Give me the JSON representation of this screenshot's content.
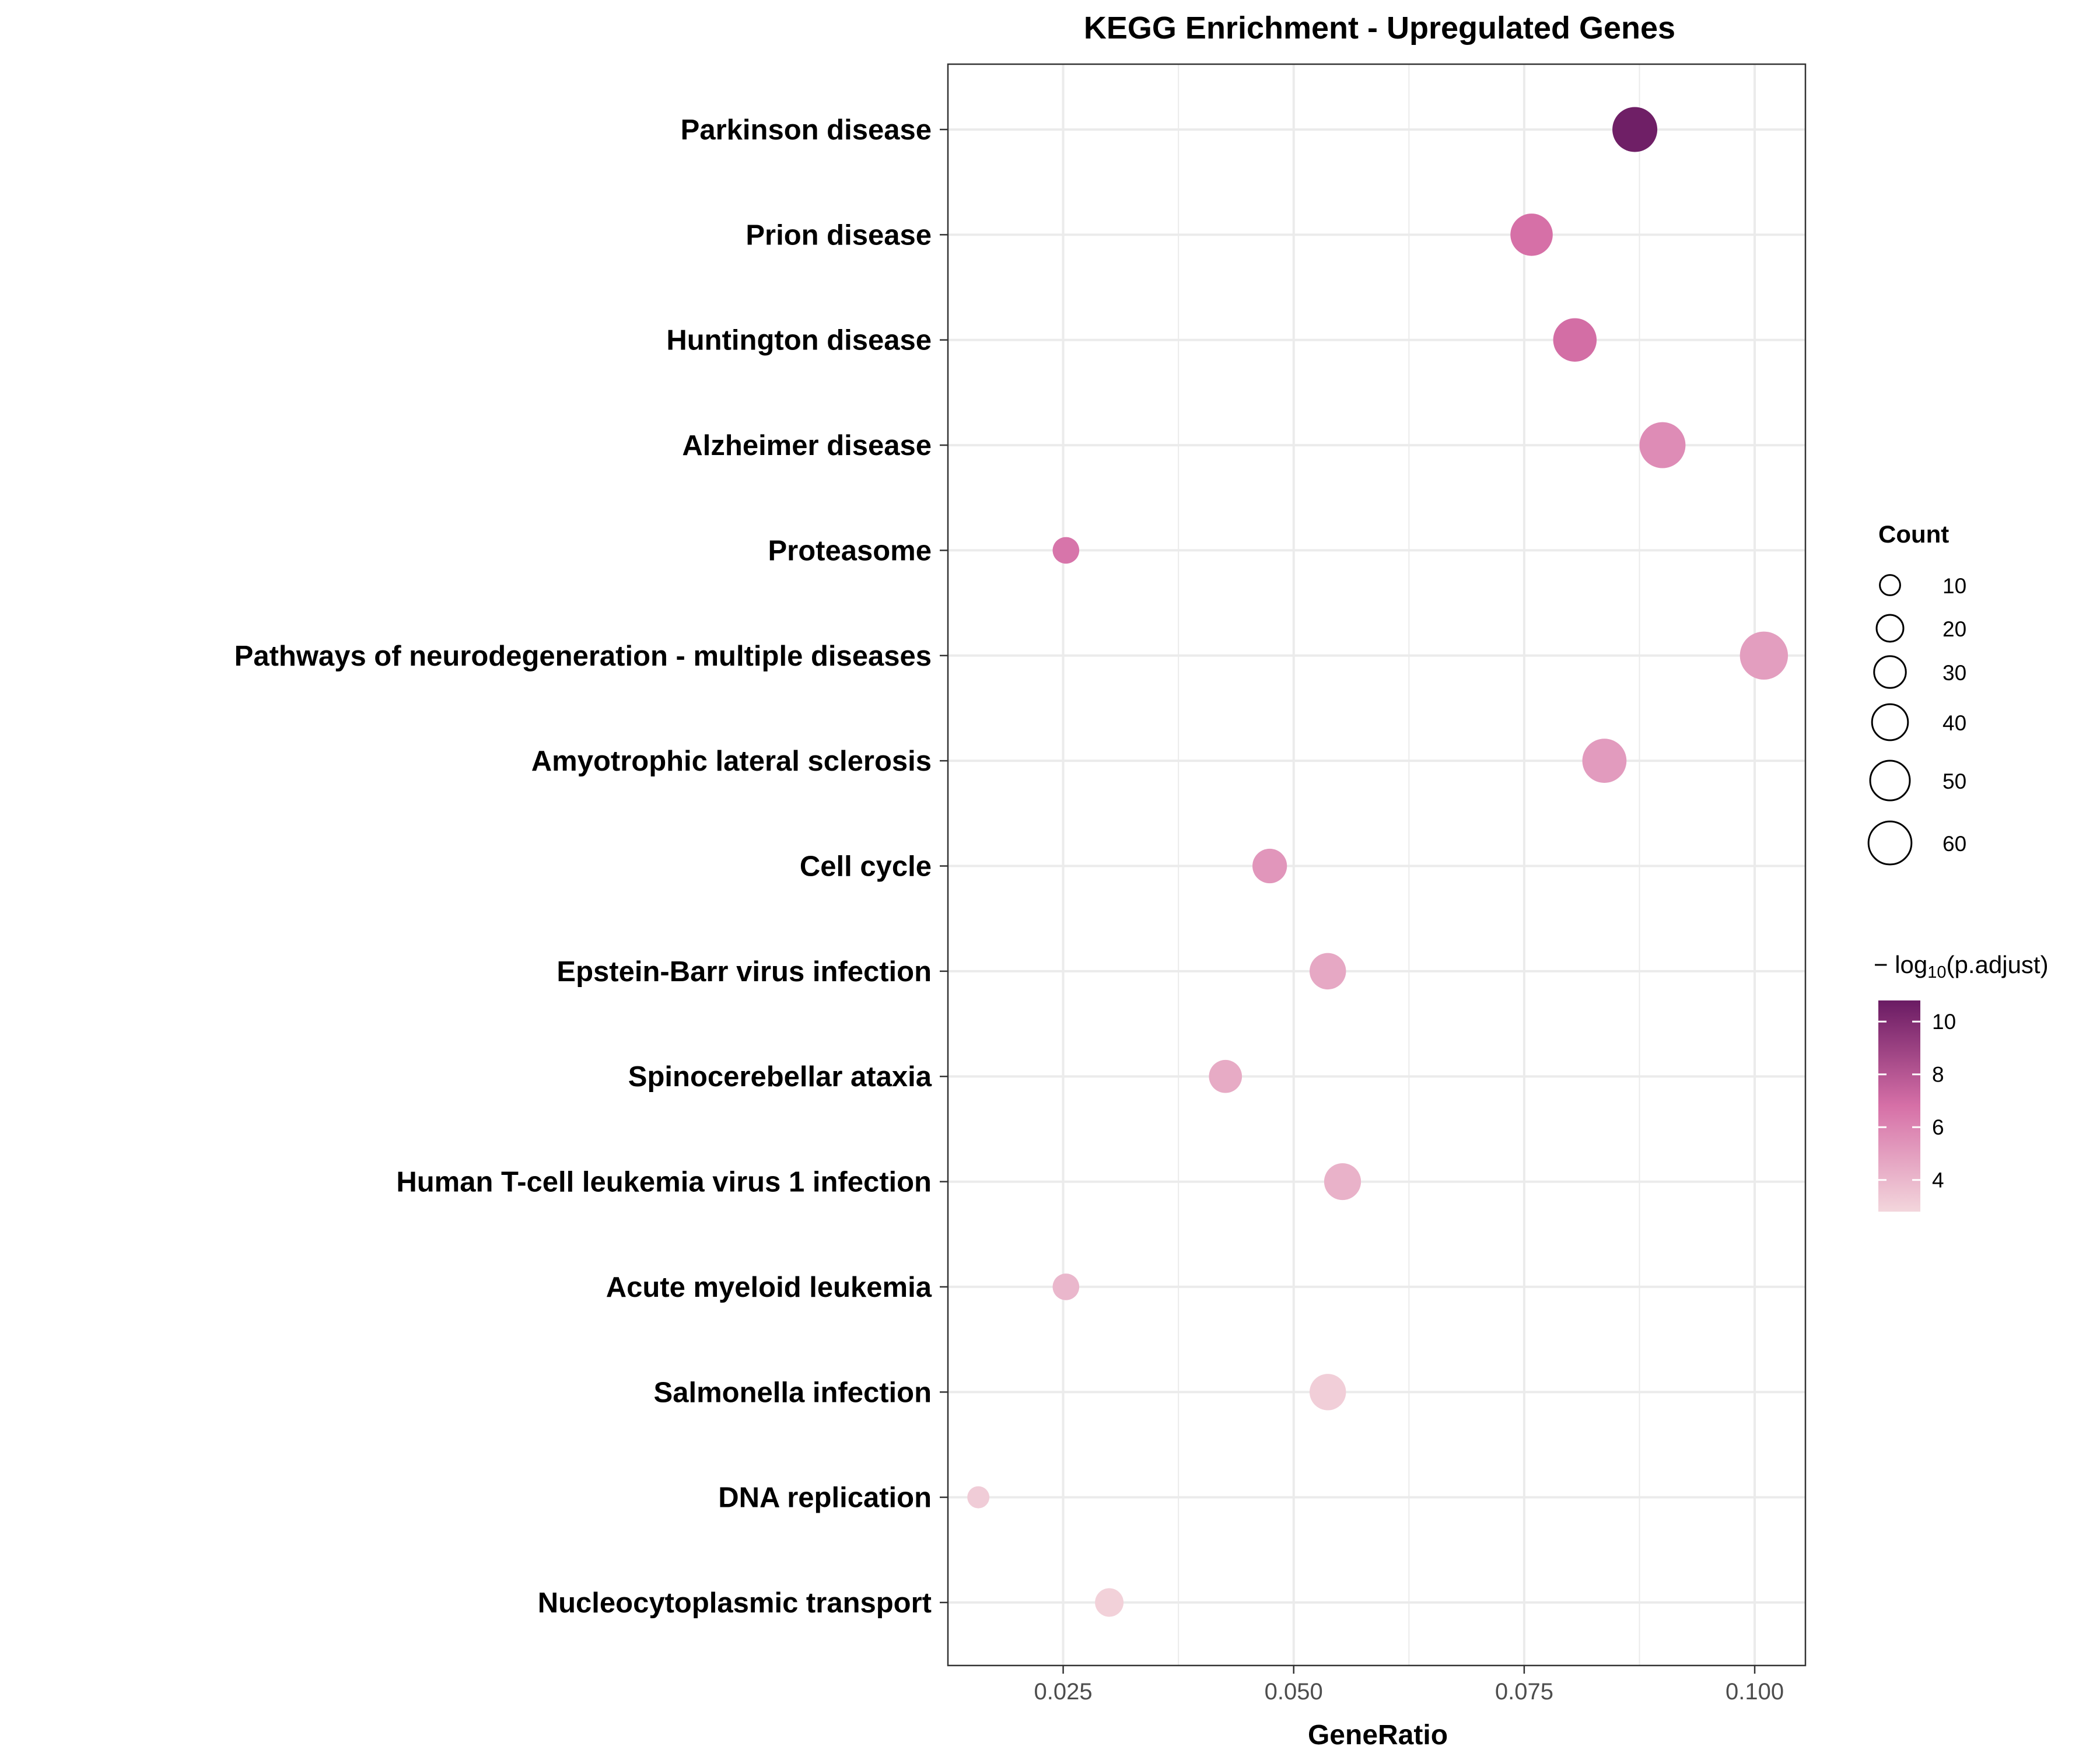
{
  "chart_data": {
    "type": "scatter",
    "title": "KEGG Enrichment - Upregulated Genes",
    "xlabel": "GeneRatio",
    "ylabel": "",
    "xlim": [
      0.0125,
      0.1055
    ],
    "xticks": [
      "0.025",
      "0.050",
      "0.075",
      "0.100"
    ],
    "xtick_values": [
      0.025,
      0.05,
      0.075,
      0.1
    ],
    "grid": true,
    "categories": [
      "Parkinson disease",
      "Prion disease",
      "Huntington disease",
      "Alzheimer disease",
      "Proteasome",
      "Pathways of neurodegeneration - multiple diseases",
      "Amyotrophic lateral sclerosis",
      "Cell cycle",
      "Epstein-Barr virus infection",
      "Spinocerebellar ataxia",
      "Human T-cell leukemia virus 1 infection",
      "Acute myeloid leukemia",
      "Salmonella infection",
      "DNA replication",
      "Nucleocytoplasmic transport"
    ],
    "points": [
      {
        "term": "Parkinson disease",
        "gene_ratio": 0.087,
        "count": 55,
        "neg_log10_padj": 10.6
      },
      {
        "term": "Prion disease",
        "gene_ratio": 0.0758,
        "count": 48,
        "neg_log10_padj": 6.8
      },
      {
        "term": "Huntington disease",
        "gene_ratio": 0.0805,
        "count": 51,
        "neg_log10_padj": 6.9
      },
      {
        "term": "Alzheimer disease",
        "gene_ratio": 0.09,
        "count": 58,
        "neg_log10_padj": 5.7
      },
      {
        "term": "Proteasome",
        "gene_ratio": 0.0253,
        "count": 16,
        "neg_log10_padj": 6.6
      },
      {
        "term": "Pathways of neurodegeneration - multiple diseases",
        "gene_ratio": 0.101,
        "count": 64,
        "neg_log10_padj": 5.0
      },
      {
        "term": "Amyotrophic lateral sclerosis",
        "gene_ratio": 0.0837,
        "count": 53,
        "neg_log10_padj": 5.1
      },
      {
        "term": "Cell cycle",
        "gene_ratio": 0.0474,
        "count": 30,
        "neg_log10_padj": 5.3
      },
      {
        "term": "Epstein-Barr virus infection",
        "gene_ratio": 0.0537,
        "count": 34,
        "neg_log10_padj": 4.6
      },
      {
        "term": "Spinocerebellar ataxia",
        "gene_ratio": 0.0426,
        "count": 27,
        "neg_log10_padj": 4.5
      },
      {
        "term": "Human T-cell leukemia virus 1 infection",
        "gene_ratio": 0.0553,
        "count": 35,
        "neg_log10_padj": 4.2
      },
      {
        "term": "Acute myeloid leukemia",
        "gene_ratio": 0.0253,
        "count": 16,
        "neg_log10_padj": 4.0
      },
      {
        "term": "Salmonella infection",
        "gene_ratio": 0.0537,
        "count": 34,
        "neg_log10_padj": 3.1
      },
      {
        "term": "DNA replication",
        "gene_ratio": 0.0158,
        "count": 10,
        "neg_log10_padj": 3.2
      },
      {
        "term": "Nucleocytoplasmic transport",
        "gene_ratio": 0.03,
        "count": 19,
        "neg_log10_padj": 3.0
      }
    ],
    "size_legend": {
      "title": "Count",
      "values": [
        10,
        20,
        30,
        40,
        50,
        60
      ],
      "labels": [
        "10",
        "20",
        "30",
        "40",
        "50",
        "60"
      ]
    },
    "color_legend": {
      "title_prefix": "− log",
      "title_subscript": "10",
      "title_suffix": "(p.adjust)",
      "range": [
        2.8,
        10.8
      ],
      "ticks": [
        4,
        6,
        8,
        10
      ],
      "tick_labels": [
        "4",
        "6",
        "8",
        "10"
      ],
      "low_color": "#f3d6dc",
      "mid_color": "#d670a7",
      "high_color": "#6a1b63"
    }
  }
}
